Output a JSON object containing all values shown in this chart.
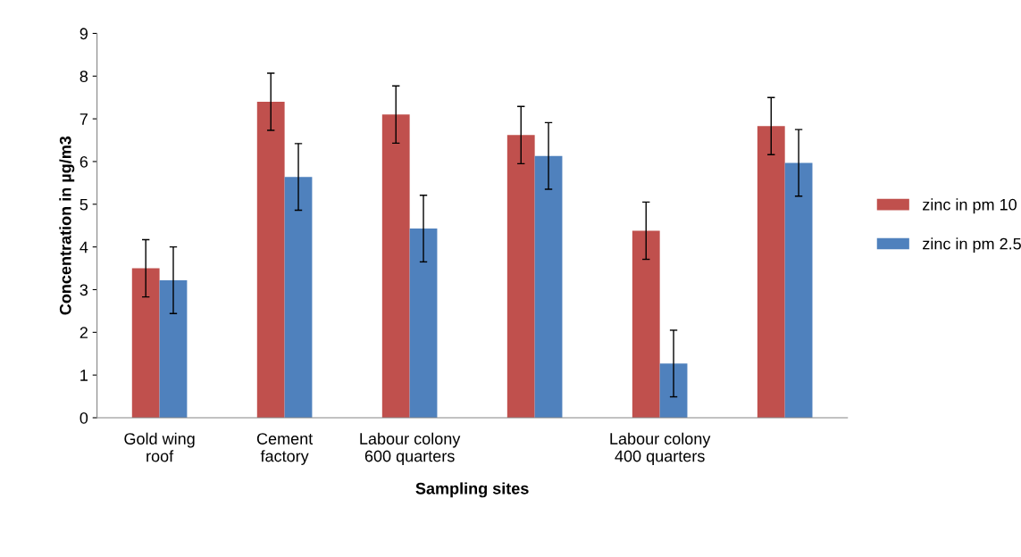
{
  "chart_data": {
    "type": "bar",
    "xlabel": "Sampling sites",
    "ylabel": "Concentration in µg/m3",
    "categories": [
      "Gold wing\nroof",
      "Cement\nfactory",
      "Labour colony\n600 quarters",
      null,
      "Labour colony\n400 quarters",
      null
    ],
    "series": [
      {
        "name": "zinc in pm 10",
        "color": "#c0504d",
        "values": [
          3.5,
          7.4,
          7.1,
          6.62,
          4.38,
          6.83
        ],
        "errors": [
          0.67,
          0.67,
          0.67,
          0.67,
          0.67,
          0.67
        ]
      },
      {
        "name": "zinc in pm 2.5",
        "color": "#4f81bd",
        "values": [
          3.22,
          5.64,
          4.43,
          6.13,
          1.27,
          5.97
        ],
        "errors": [
          0.78,
          0.78,
          0.78,
          0.78,
          0.78,
          0.78
        ]
      }
    ],
    "ylim": [
      0,
      9
    ],
    "yticks": [
      0,
      1,
      2,
      3,
      4,
      5,
      6,
      7,
      8,
      9
    ],
    "grid": false,
    "legend": "right"
  }
}
